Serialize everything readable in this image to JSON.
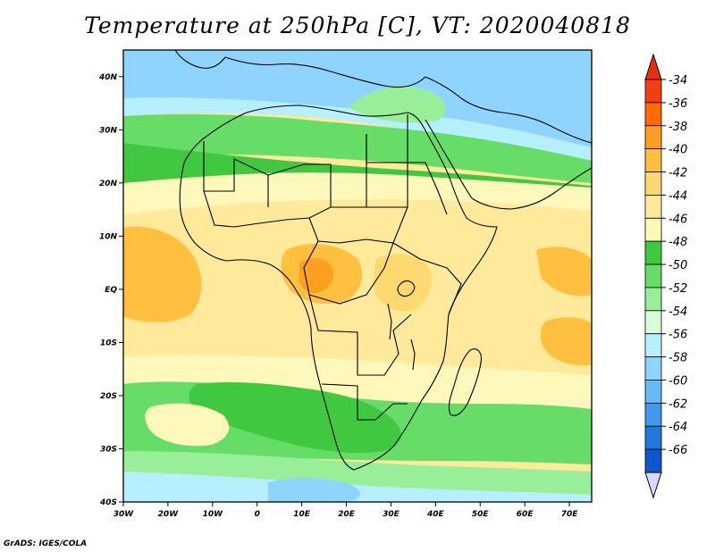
{
  "figure": {
    "title": "Temperature at 250hPa [C], VT: 2020040818",
    "credit": "GrADS: IGES/COLA"
  },
  "map": {
    "lon_range": [
      -30,
      75
    ],
    "lat_range": [
      -40,
      45
    ],
    "lon_ticks": [
      {
        "value": -30,
        "label": "30W"
      },
      {
        "value": -20,
        "label": "20W"
      },
      {
        "value": -10,
        "label": "10W"
      },
      {
        "value": 0,
        "label": "0"
      },
      {
        "value": 10,
        "label": "10E"
      },
      {
        "value": 20,
        "label": "20E"
      },
      {
        "value": 30,
        "label": "30E"
      },
      {
        "value": 40,
        "label": "40E"
      },
      {
        "value": 50,
        "label": "50E"
      },
      {
        "value": 60,
        "label": "60E"
      },
      {
        "value": 70,
        "label": "70E"
      }
    ],
    "lat_ticks": [
      {
        "value": 40,
        "label": "40N"
      },
      {
        "value": 30,
        "label": "30N"
      },
      {
        "value": 20,
        "label": "20N"
      },
      {
        "value": 10,
        "label": "10N"
      },
      {
        "value": 0,
        "label": "EQ"
      },
      {
        "value": -10,
        "label": "10S"
      },
      {
        "value": -20,
        "label": "20S"
      },
      {
        "value": -30,
        "label": "30S"
      },
      {
        "value": -40,
        "label": "40S"
      }
    ]
  },
  "colorbar": {
    "orientation": "vertical",
    "placement": "right",
    "labels": [
      "-34",
      "-36",
      "-38",
      "-40",
      "-42",
      "-44",
      "-46",
      "-48",
      "-50",
      "-52",
      "-54",
      "-56",
      "-58",
      "-60",
      "-62",
      "-64",
      "-66"
    ],
    "colors_top_to_bottom": [
      "#f04010",
      "#ff6a00",
      "#ff9f20",
      "#ffc040",
      "#ffd870",
      "#ffe99a",
      "#fff8bb",
      "#40c840",
      "#66dd66",
      "#99ef99",
      "#d8ffd8",
      "#b6f0ff",
      "#8ed4ff",
      "#66bbf5",
      "#4499ee",
      "#2277dd",
      "#1155cc",
      "#0a2f88"
    ],
    "arrow_top_color": "#e83010",
    "arrow_bottom_color": "#d8d8ff"
  }
}
